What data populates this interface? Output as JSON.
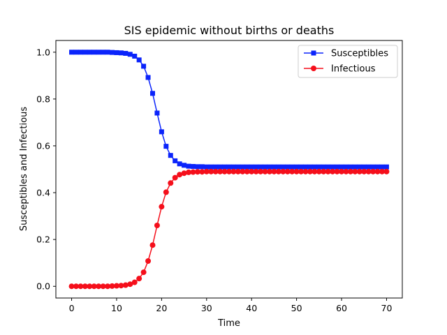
{
  "chart_data": {
    "type": "line",
    "title": "SIS epidemic without births or deaths",
    "xlabel": "Time",
    "ylabel": "Susceptibles and Infectious",
    "xlim": [
      -3.5,
      73.5
    ],
    "ylim": [
      -0.05,
      1.05
    ],
    "xticks": [
      0,
      10,
      20,
      30,
      40,
      50,
      60,
      70
    ],
    "yticks": [
      0.0,
      0.2,
      0.4,
      0.6,
      0.8,
      1.0
    ],
    "xtick_labels": [
      "0",
      "10",
      "20",
      "30",
      "40",
      "50",
      "60",
      "70"
    ],
    "ytick_labels": [
      "0.0",
      "0.2",
      "0.4",
      "0.6",
      "0.8",
      "1.0"
    ],
    "grid": false,
    "legend_position": "top-right",
    "x": [
      0,
      1,
      2,
      3,
      4,
      5,
      6,
      7,
      8,
      9,
      10,
      11,
      12,
      13,
      14,
      15,
      16,
      17,
      18,
      19,
      20,
      21,
      22,
      23,
      24,
      25,
      26,
      27,
      28,
      29,
      30,
      31,
      32,
      33,
      34,
      35,
      36,
      37,
      38,
      39,
      40,
      41,
      42,
      43,
      44,
      45,
      46,
      47,
      48,
      49,
      50,
      51,
      52,
      53,
      54,
      55,
      56,
      57,
      58,
      59,
      60,
      61,
      62,
      63,
      64,
      65,
      66,
      67,
      68,
      69,
      70
    ],
    "series": [
      {
        "name": "Susceptibles",
        "color": "#0b24fb",
        "marker": "square",
        "values": [
          1.0,
          1.0,
          1.0,
          1.0,
          1.0,
          1.0,
          1.0,
          1.0,
          1.0,
          0.999,
          0.998,
          0.997,
          0.995,
          0.991,
          0.983,
          0.967,
          0.94,
          0.892,
          0.824,
          0.74,
          0.66,
          0.598,
          0.559,
          0.536,
          0.523,
          0.517,
          0.513,
          0.512,
          0.511,
          0.511,
          0.51,
          0.51,
          0.51,
          0.51,
          0.51,
          0.51,
          0.51,
          0.51,
          0.51,
          0.51,
          0.51,
          0.51,
          0.51,
          0.51,
          0.51,
          0.51,
          0.51,
          0.51,
          0.51,
          0.51,
          0.51,
          0.51,
          0.51,
          0.51,
          0.51,
          0.51,
          0.51,
          0.51,
          0.51,
          0.51,
          0.51,
          0.51,
          0.51,
          0.51,
          0.51,
          0.51,
          0.51,
          0.51,
          0.51,
          0.51,
          0.51
        ]
      },
      {
        "name": "Infectious",
        "color": "#f50f1b",
        "marker": "circle",
        "values": [
          0.0,
          0.0,
          0.0,
          0.0,
          0.0,
          0.0,
          0.0,
          0.0,
          0.0,
          0.001,
          0.002,
          0.003,
          0.005,
          0.009,
          0.017,
          0.033,
          0.06,
          0.108,
          0.176,
          0.26,
          0.34,
          0.402,
          0.441,
          0.464,
          0.477,
          0.483,
          0.487,
          0.488,
          0.489,
          0.489,
          0.49,
          0.49,
          0.49,
          0.49,
          0.49,
          0.49,
          0.49,
          0.49,
          0.49,
          0.49,
          0.49,
          0.49,
          0.49,
          0.49,
          0.49,
          0.49,
          0.49,
          0.49,
          0.49,
          0.49,
          0.49,
          0.49,
          0.49,
          0.49,
          0.49,
          0.49,
          0.49,
          0.49,
          0.49,
          0.49,
          0.49,
          0.49,
          0.49,
          0.49,
          0.49,
          0.49,
          0.49,
          0.49,
          0.49,
          0.49,
          0.49
        ]
      }
    ]
  }
}
